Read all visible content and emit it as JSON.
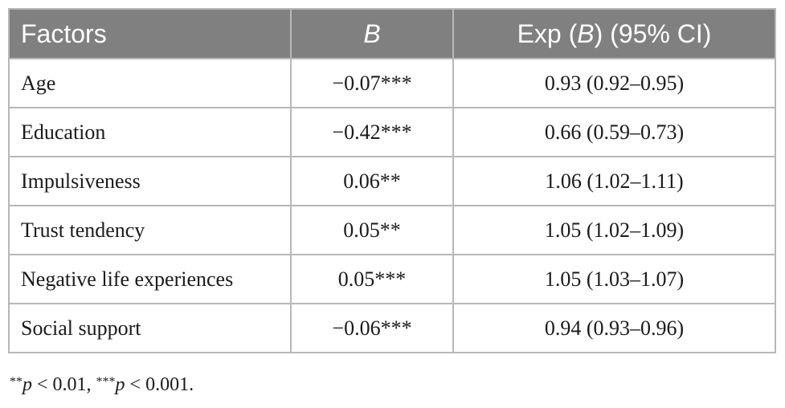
{
  "table": {
    "headers": {
      "factors": "Factors",
      "b": "B",
      "exp_prefix": "Exp (",
      "exp_b": "B",
      "exp_suffix": ") (95% CI)"
    },
    "rows": [
      {
        "factor": "Age",
        "b": "−0.07***",
        "exp": "0.93 (0.92–0.95)"
      },
      {
        "factor": "Education",
        "b": "−0.42***",
        "exp": "0.66 (0.59–0.73)"
      },
      {
        "factor": "Impulsiveness",
        "b": "0.06**",
        "exp": "1.06 (1.02–1.11)"
      },
      {
        "factor": "Trust tendency",
        "b": "0.05**",
        "exp": "1.05 (1.02–1.09)"
      },
      {
        "factor": "Negative life experiences",
        "b": "0.05***",
        "exp": "1.05 (1.03–1.07)"
      },
      {
        "factor": "Social support",
        "b": "−0.06***",
        "exp": "0.94 (0.93–0.96)"
      }
    ]
  },
  "footnote": {
    "stars1": "**",
    "p1": "p",
    "cond1": " < 0.01, ",
    "stars2": "***",
    "p2": "p",
    "cond2": " < 0.001."
  },
  "colors": {
    "header_bg": "#808080",
    "header_text": "#ffffff",
    "border": "#b8b8b8"
  }
}
